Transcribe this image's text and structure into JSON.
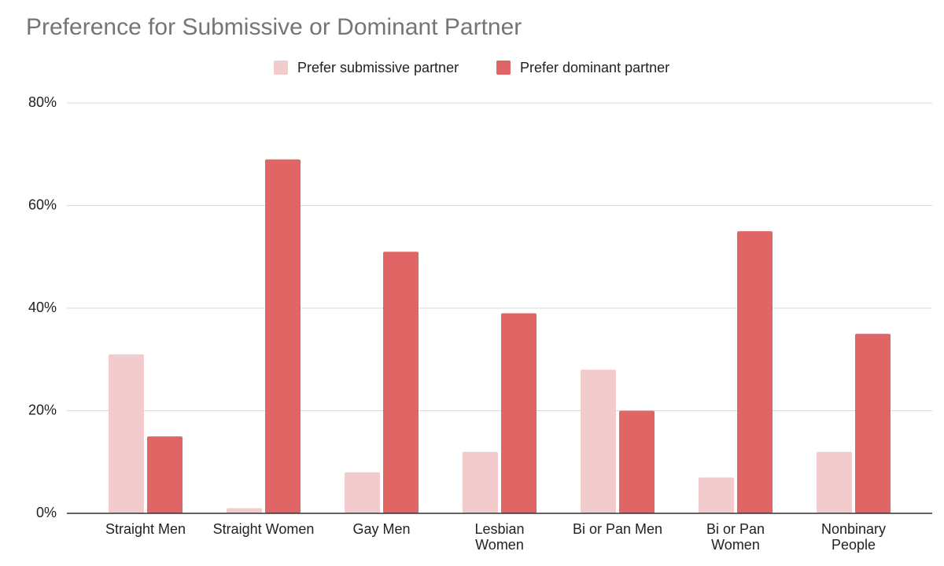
{
  "chart_data": {
    "type": "bar",
    "title": "Preference for Submissive or Dominant Partner",
    "categories": [
      "Straight Men",
      "Straight Women",
      "Gay Men",
      "Lesbian\nWomen",
      "Bi or Pan Men",
      "Bi or Pan\nWomen",
      "Nonbinary\nPeople"
    ],
    "series": [
      {
        "name": "Prefer submissive partner",
        "color": "#f2cccc",
        "values": [
          31,
          1,
          8,
          12,
          28,
          7,
          12
        ]
      },
      {
        "name": "Prefer dominant partner",
        "color": "#e06666",
        "values": [
          15,
          69,
          51,
          39,
          20,
          55,
          35
        ]
      }
    ],
    "ylim": [
      0,
      80
    ],
    "yticks": [
      {
        "value": 0,
        "label": "0%"
      },
      {
        "value": 20,
        "label": "20%"
      },
      {
        "value": 40,
        "label": "40%"
      },
      {
        "value": 60,
        "label": "60%"
      },
      {
        "value": 80,
        "label": "80%"
      }
    ],
    "grid": true,
    "legend": "top"
  }
}
